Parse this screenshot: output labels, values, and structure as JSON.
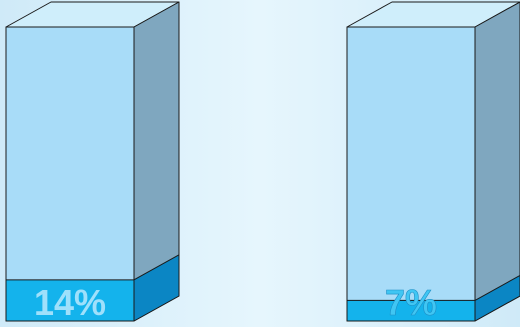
{
  "chart_data": {
    "type": "bar",
    "style": "3d-cylinder-fill",
    "ylim": [
      0,
      100
    ],
    "grid": false,
    "bars": [
      {
        "label": "14%",
        "value": 14
      },
      {
        "label": "7%",
        "value": 7
      }
    ]
  },
  "colors": {
    "container_front": "#a8dcf8",
    "container_top": "#cfeefb",
    "container_side": "#7fa7bf",
    "fill_front": "#14b3ec",
    "fill_side": "#0b86c4",
    "fill_top": "#38c4f2",
    "stroke": "#1a1a1a",
    "label_on_fill": "#9fe0fb",
    "label_above_fill": "#40c6f3"
  }
}
